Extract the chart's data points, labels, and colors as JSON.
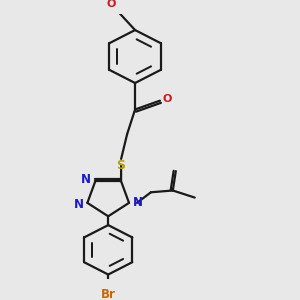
{
  "bg_color": "#e8e8e8",
  "line_color": "#1a1a1a",
  "blue_color": "#1a1acc",
  "red_color": "#cc1a1a",
  "yellow_color": "#b8a000",
  "orange_color": "#cc6600",
  "line_width": 1.6,
  "doff": 0.012,
  "figsize": [
    3.0,
    3.0
  ],
  "dpi": 100,
  "xlim": [
    0,
    3.0
  ],
  "ylim": [
    0,
    3.0
  ]
}
